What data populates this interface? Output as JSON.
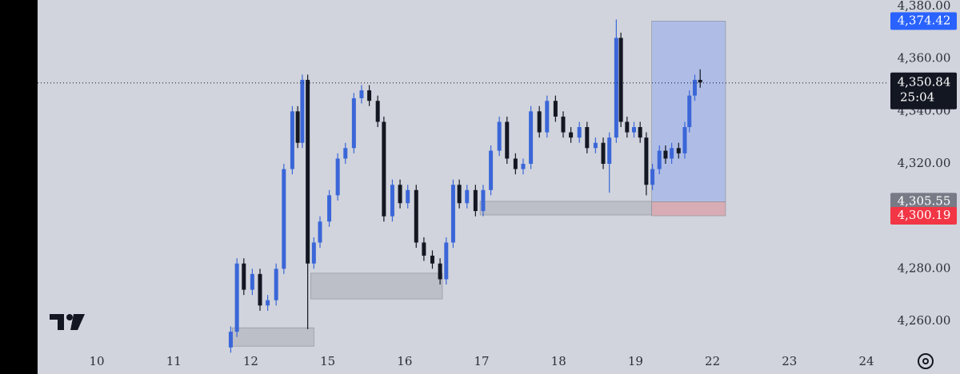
{
  "chart_data": {
    "type": "candlestick",
    "categories": [
      "10",
      "11",
      "12",
      "15",
      "16",
      "17",
      "18",
      "19",
      "22",
      "23",
      "24"
    ],
    "xlim": [
      -0.77,
      10.26
    ],
    "ylim": [
      4249.94,
      4382.44
    ],
    "yticks": [
      {
        "value": 4260,
        "label": "4,260.00"
      },
      {
        "value": 4280,
        "label": "4,280.00"
      },
      {
        "value": 4300,
        "label": "4,300.00"
      },
      {
        "value": 4320,
        "label": "4,320.00"
      },
      {
        "value": 4340,
        "label": "4,340.00"
      },
      {
        "value": 4360,
        "label": "4,360.00"
      },
      {
        "value": 4380,
        "label": "4,380.00"
      }
    ],
    "up_color": "#3a66d8",
    "down_color": "#131722",
    "candles": {
      "x": [
        1.74,
        1.82,
        1.91,
        2.02,
        2.12,
        2.22,
        2.33,
        2.43,
        2.54,
        2.61,
        2.67,
        2.74,
        2.82,
        2.9,
        3.02,
        3.13,
        3.23,
        3.34,
        3.44,
        3.54,
        3.65,
        3.73,
        3.84,
        3.94,
        4.04,
        4.15,
        4.25,
        4.36,
        4.46,
        4.54,
        4.63,
        4.71,
        4.81,
        4.92,
        5.02,
        5.12,
        5.23,
        5.33,
        5.44,
        5.54,
        5.64,
        5.75,
        5.85,
        5.96,
        6.06,
        6.16,
        6.27,
        6.37,
        6.48,
        6.58,
        6.66,
        6.75,
        6.81,
        6.89,
        6.98,
        7.06,
        7.14,
        7.22,
        7.31,
        7.39,
        7.47,
        7.56,
        7.64,
        7.7,
        7.77,
        7.84
      ],
      "open": [
        4250,
        4256,
        4282,
        4272,
        4278,
        4266,
        4268,
        4280,
        4318,
        4340,
        4328,
        4352,
        4282,
        4290,
        4298,
        4308,
        4322,
        4326,
        4345,
        4348,
        4344,
        4336,
        4300,
        4312,
        4305,
        4310,
        4290,
        4285,
        4282,
        4276,
        4290,
        4312,
        4305,
        4310,
        4302,
        4310,
        4325,
        4336,
        4322,
        4318,
        4320,
        4340,
        4332,
        4344,
        4338,
        4332,
        4330,
        4334,
        4326,
        4328,
        4320,
        4330,
        4368,
        4336,
        4332,
        4334,
        4330,
        4312,
        4318,
        4325,
        4322,
        4326,
        4324,
        4334,
        4346,
        4352
      ],
      "high": [
        4258,
        4284,
        4284,
        4280,
        4280,
        4270,
        4282,
        4320,
        4342,
        4342,
        4354,
        4354,
        4292,
        4300,
        4310,
        4324,
        4328,
        4347,
        4350,
        4350,
        4346,
        4338,
        4314,
        4314,
        4312,
        4312,
        4292,
        4287,
        4284,
        4292,
        4314,
        4314,
        4312,
        4312,
        4312,
        4327,
        4338,
        4338,
        4324,
        4322,
        4342,
        4342,
        4346,
        4346,
        4340,
        4334,
        4336,
        4336,
        4330,
        4330,
        4332,
        4375,
        4370,
        4338,
        4336,
        4336,
        4332,
        4320,
        4327,
        4327,
        4328,
        4328,
        4336,
        4348,
        4354,
        4356
      ],
      "low": [
        4248,
        4254,
        4270,
        4270,
        4264,
        4264,
        4266,
        4278,
        4316,
        4326,
        4326,
        4257,
        4280,
        4288,
        4296,
        4306,
        4320,
        4324,
        4343,
        4342,
        4334,
        4298,
        4298,
        4303,
        4303,
        4288,
        4283,
        4280,
        4274,
        4274,
        4288,
        4303,
        4303,
        4300,
        4300,
        4308,
        4323,
        4320,
        4316,
        4316,
        4318,
        4330,
        4330,
        4336,
        4330,
        4328,
        4328,
        4324,
        4324,
        4318,
        4309,
        4328,
        4334,
        4330,
        4330,
        4328,
        4308,
        4310,
        4316,
        4320,
        4320,
        4322,
        4322,
        4332,
        4344,
        4349
      ],
      "close": [
        4256,
        4282,
        4272,
        4278,
        4266,
        4268,
        4280,
        4318,
        4340,
        4328,
        4352,
        4282,
        4290,
        4298,
        4308,
        4322,
        4326,
        4345,
        4348,
        4344,
        4336,
        4300,
        4312,
        4305,
        4310,
        4290,
        4285,
        4282,
        4276,
        4290,
        4312,
        4305,
        4310,
        4302,
        4310,
        4325,
        4336,
        4322,
        4318,
        4320,
        4340,
        4332,
        4344,
        4338,
        4332,
        4330,
        4334,
        4326,
        4328,
        4320,
        4330,
        4368,
        4336,
        4332,
        4334,
        4330,
        4312,
        4318,
        4325,
        4322,
        4326,
        4324,
        4334,
        4346,
        4352,
        4351
      ]
    },
    "zones": [
      {
        "x": [
          1.76,
          2.82
        ],
        "y": [
          4250.5,
          4257.5
        ],
        "color": "#b8bbc4"
      },
      {
        "x": [
          2.78,
          4.49
        ],
        "y": [
          4268.5,
          4278.3
        ],
        "color": "#b8bbc4"
      },
      {
        "x": [
          4.98,
          7.21
        ],
        "y": [
          4300.5,
          4305.7
        ],
        "color": "#b8bbc4"
      },
      {
        "x": [
          7.21,
          8.17
        ],
        "y": [
          4305.55,
          4374.42
        ],
        "color": "#a9b8e8"
      },
      {
        "x": [
          7.21,
          8.17
        ],
        "y": [
          4300.19,
          4305.55
        ],
        "color": "#d9a5ad"
      }
    ],
    "price_labels": [
      {
        "value": 4374.42,
        "label": "4,374.42",
        "color": "#2962ff"
      },
      {
        "value": 4305.55,
        "label": "4,305.55",
        "color": "#787b86"
      },
      {
        "value": 4300.19,
        "label": "4,300.19",
        "color": "#f23645"
      }
    ],
    "last_price": {
      "value": 4350.84,
      "label": "4,350.84",
      "countdown": "25:04",
      "color": "#131722"
    }
  }
}
